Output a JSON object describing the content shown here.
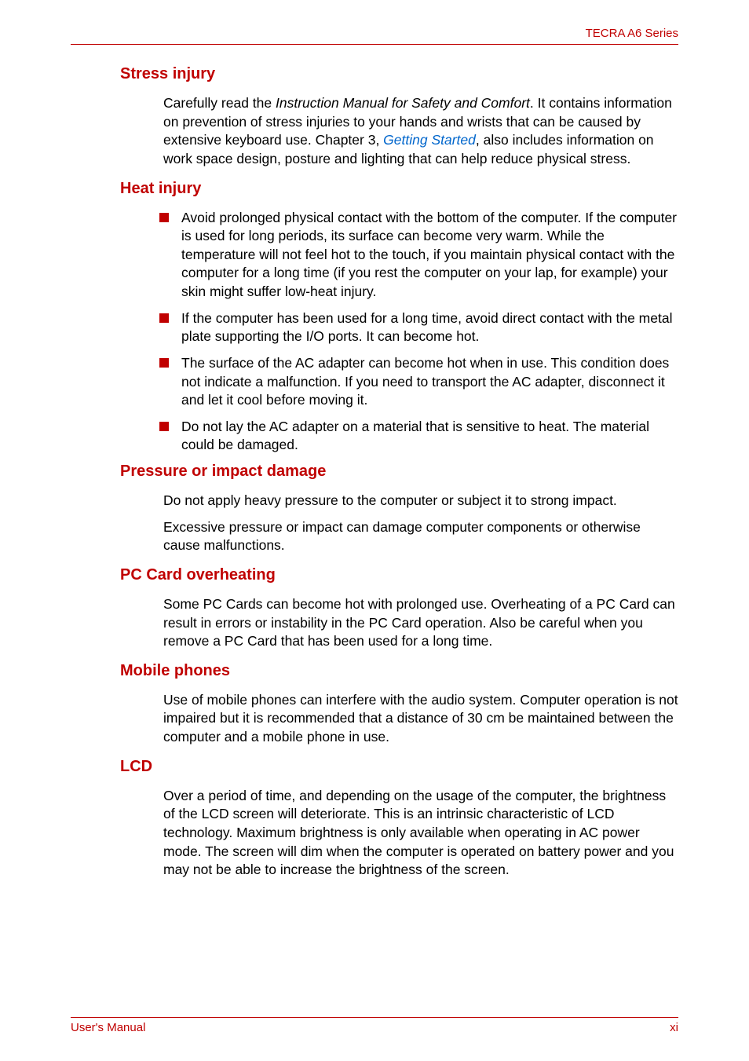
{
  "header": {
    "product": "TECRA A6 Series"
  },
  "sections": {
    "stress": {
      "heading": "Stress injury",
      "p1_a": "Carefully read the ",
      "p1_italic": "Instruction Manual for Safety and Comfort",
      "p1_b": ". It contains information on prevention of stress injuries to your hands and wrists that can be caused by extensive keyboard use. Chapter 3, ",
      "p1_link": "Getting Started",
      "p1_c": ", also includes information on work space design, posture and lighting that can help reduce physical stress."
    },
    "heat": {
      "heading": "Heat injury",
      "bullets": [
        "Avoid prolonged physical contact with the bottom of the computer. If the computer is used for long periods, its surface can become very warm. While the temperature will not feel hot to the touch, if you maintain physical contact with the computer for a long time (if you rest the computer on your lap, for example) your skin might suffer low-heat injury.",
        "If the computer has been used for a long time, avoid direct contact with the metal plate supporting the I/O ports. It can become hot.",
        "The surface of the AC adapter can become hot when in use. This condition does not indicate a malfunction. If you need to transport the AC adapter, disconnect it and let it cool before moving it.",
        "Do not lay the AC adapter on a material that is sensitive to heat. The material could be damaged."
      ]
    },
    "pressure": {
      "heading": "Pressure or impact damage",
      "p1": "Do not apply heavy pressure to the computer or subject it to strong impact.",
      "p2": "Excessive pressure or impact can damage computer components or otherwise cause malfunctions."
    },
    "pccard": {
      "heading": "PC Card overheating",
      "p1": "Some PC Cards can become hot with prolonged use. Overheating of a PC Card can result in errors or instability in the PC Card operation. Also be careful when you remove a PC Card that has been used for a long time."
    },
    "mobile": {
      "heading": "Mobile phones",
      "p1": "Use of mobile phones can interfere with the audio system. Computer operation is not impaired but it is recommended that a distance of 30 cm be maintained between the computer and a mobile phone in use."
    },
    "lcd": {
      "heading": "LCD",
      "p1": "Over a period of time, and depending on the usage of the computer, the brightness of the LCD screen will deteriorate. This is an intrinsic characteristic of LCD technology. Maximum brightness is only available when operating in AC power mode. The screen will dim when the computer is operated on battery power and you may not be able to increase the brightness of the screen."
    }
  },
  "footer": {
    "left": "User's Manual",
    "right": "xi"
  },
  "style": {
    "accent_color": "#c00000",
    "text_color": "#000000",
    "link_color": "#0066cc",
    "background_color": "#ffffff",
    "body_fontsize": 17.5,
    "heading_fontsize": 20,
    "header_fontsize": 15
  }
}
